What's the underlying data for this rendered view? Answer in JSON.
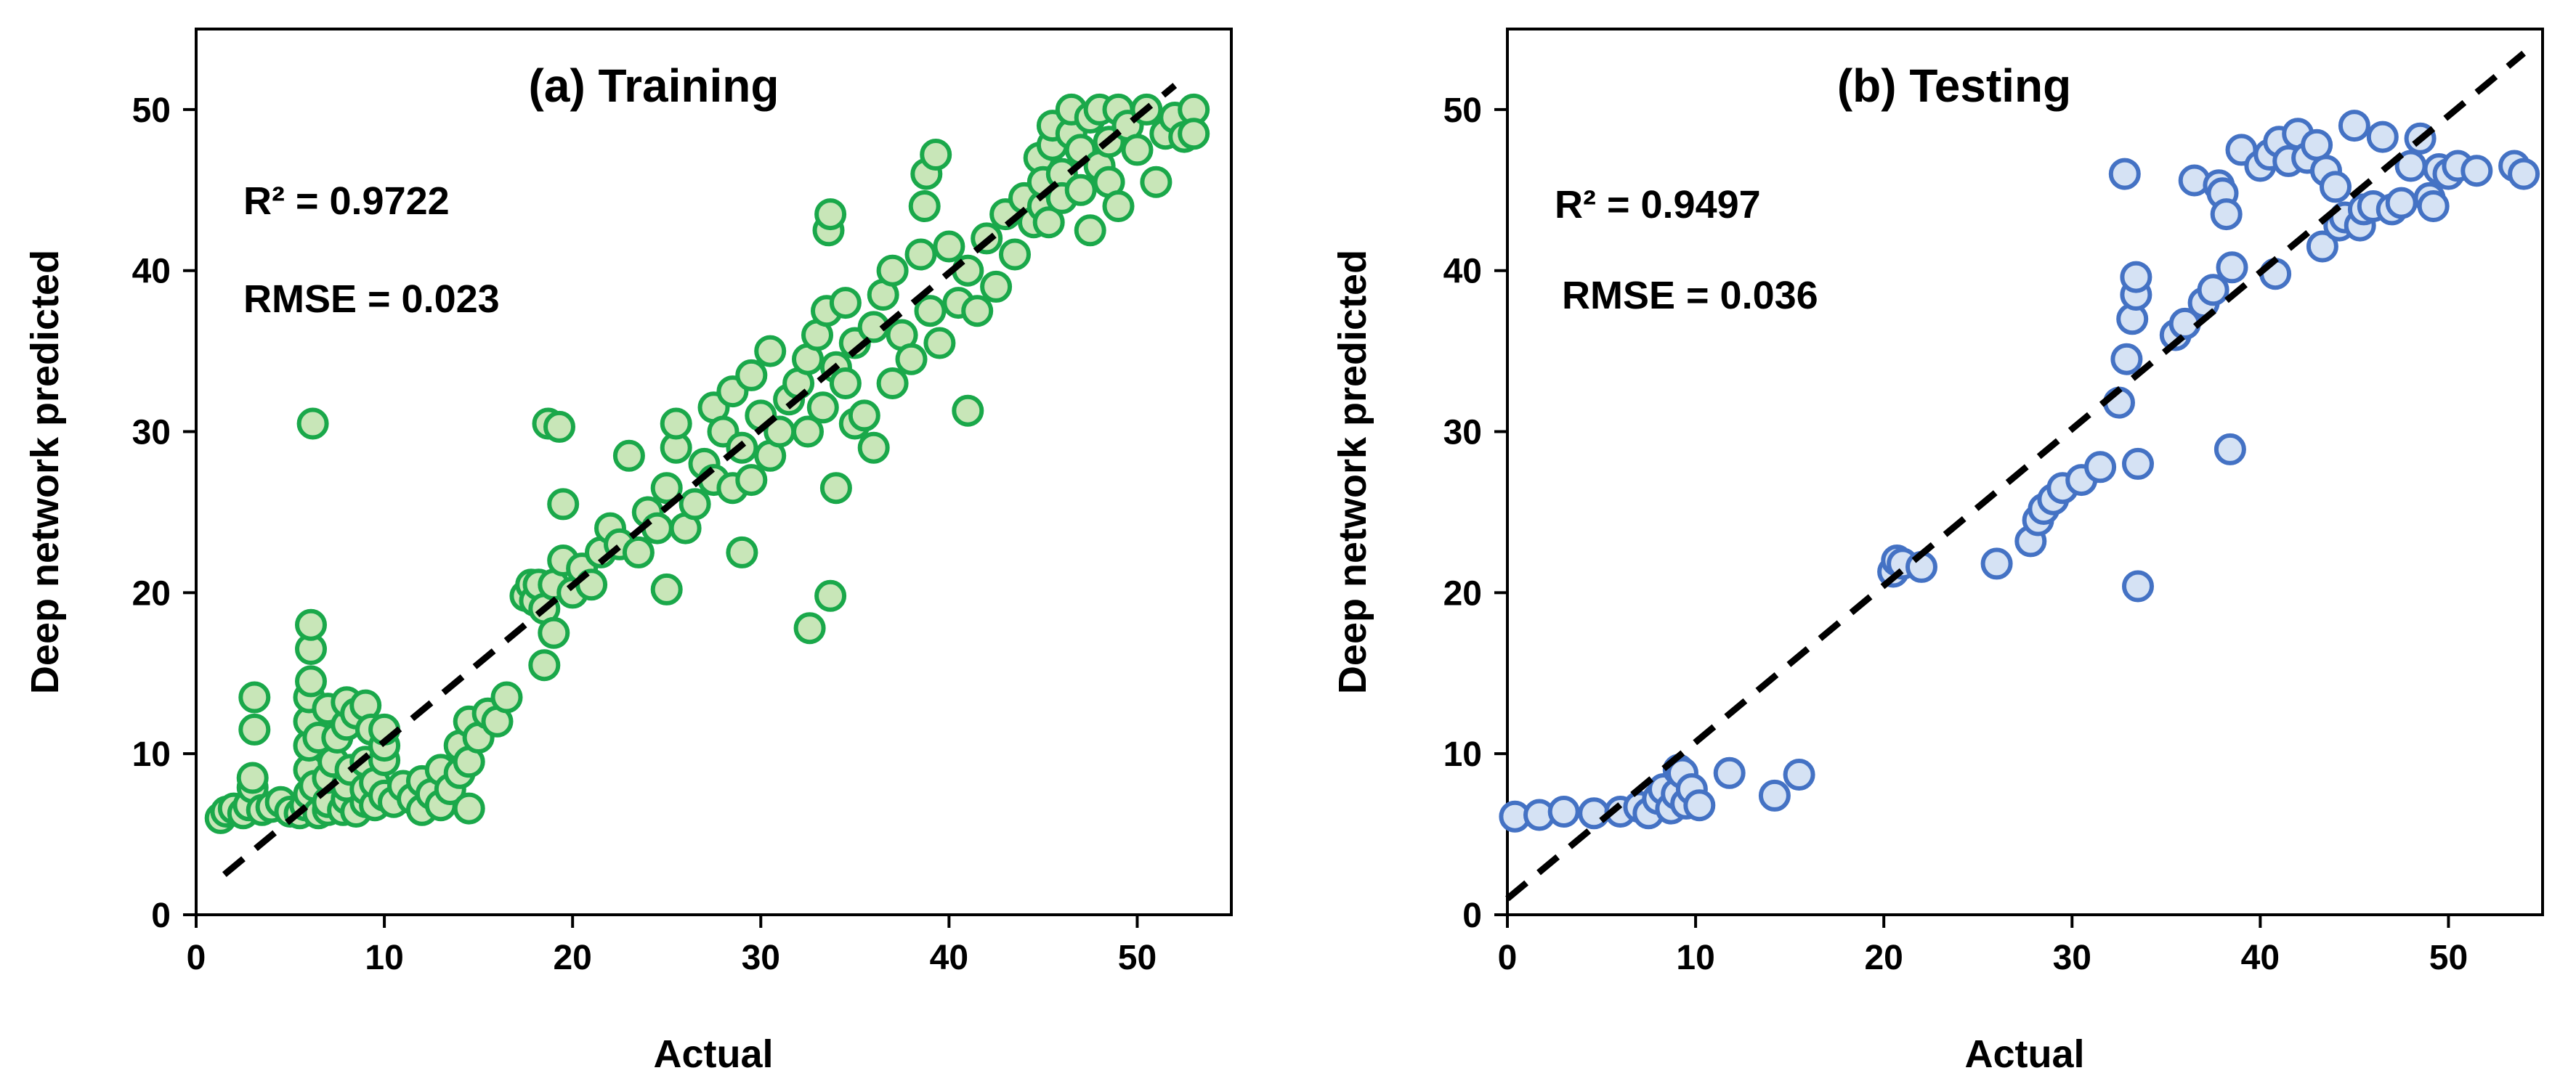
{
  "chart_data": [
    {
      "type": "scatter",
      "title": "(a) Training",
      "xlabel": "Actual",
      "ylabel": "Deep network predicted",
      "xlim": [
        0,
        55
      ],
      "ylim": [
        0,
        55
      ],
      "xticks": [
        0,
        10,
        20,
        30,
        40,
        50
      ],
      "yticks": [
        0,
        10,
        20,
        30,
        40,
        50
      ],
      "annotations": [
        "R² = 0.9722",
        "RMSE = 0.023"
      ],
      "marker_fill": "#c8e6b8",
      "marker_edge": "#1aa84a",
      "fit_line": {
        "x": [
          1.5,
          52
        ],
        "y": [
          2.5,
          51.5
        ],
        "style": "dashed",
        "color": "#000000"
      },
      "series": [
        {
          "name": "Training",
          "points": [
            [
              1.3,
              6.0
            ],
            [
              1.6,
              6.4
            ],
            [
              2.0,
              6.6
            ],
            [
              2.5,
              6.3
            ],
            [
              2.8,
              6.8
            ],
            [
              3.0,
              7.9
            ],
            [
              3.0,
              8.5
            ],
            [
              3.1,
              11.5
            ],
            [
              3.1,
              13.5
            ],
            [
              3.5,
              6.5
            ],
            [
              4.0,
              6.7
            ],
            [
              4.5,
              7.0
            ],
            [
              5.0,
              6.4
            ],
            [
              5.5,
              6.3
            ],
            [
              5.8,
              6.8
            ],
            [
              6.0,
              7.5
            ],
            [
              6.0,
              9.0
            ],
            [
              6.0,
              10.5
            ],
            [
              6.0,
              12.0
            ],
            [
              6.0,
              13.5
            ],
            [
              6.1,
              14.5
            ],
            [
              6.1,
              16.5
            ],
            [
              6.1,
              18.0
            ],
            [
              6.2,
              30.5
            ],
            [
              6.3,
              8.0
            ],
            [
              6.5,
              11.0
            ],
            [
              6.5,
              6.3
            ],
            [
              7.0,
              6.5
            ],
            [
              7.0,
              7.0
            ],
            [
              7.0,
              8.5
            ],
            [
              7.0,
              12.8
            ],
            [
              7.3,
              9.5
            ],
            [
              7.5,
              11.0
            ],
            [
              7.8,
              6.5
            ],
            [
              8.0,
              7.2
            ],
            [
              8.0,
              8.0
            ],
            [
              8.0,
              11.8
            ],
            [
              8.0,
              13.2
            ],
            [
              8.2,
              9.0
            ],
            [
              8.5,
              6.4
            ],
            [
              8.5,
              12.5
            ],
            [
              9.0,
              7.0
            ],
            [
              9.0,
              7.8
            ],
            [
              9.0,
              9.5
            ],
            [
              9.0,
              13.0
            ],
            [
              9.3,
              11.5
            ],
            [
              9.5,
              6.8
            ],
            [
              9.5,
              8.2
            ],
            [
              10.0,
              7.4
            ],
            [
              10.0,
              9.6
            ],
            [
              10.0,
              10.5
            ],
            [
              10.0,
              11.5
            ],
            [
              10.5,
              7.0
            ],
            [
              11.0,
              8.0
            ],
            [
              11.5,
              7.2
            ],
            [
              12.0,
              6.5
            ],
            [
              12.0,
              8.3
            ],
            [
              12.5,
              7.5
            ],
            [
              13.0,
              6.8
            ],
            [
              13.0,
              9.0
            ],
            [
              13.5,
              7.8
            ],
            [
              14.0,
              8.8
            ],
            [
              14.0,
              10.5
            ],
            [
              14.5,
              6.6
            ],
            [
              14.5,
              9.5
            ],
            [
              14.5,
              12.0
            ],
            [
              15.0,
              11.0
            ],
            [
              15.5,
              12.5
            ],
            [
              16.0,
              12.0
            ],
            [
              16.5,
              13.5
            ],
            [
              17.5,
              19.8
            ],
            [
              17.8,
              20.5
            ],
            [
              18.0,
              19.5
            ],
            [
              18.2,
              20.5
            ],
            [
              18.5,
              15.5
            ],
            [
              18.5,
              19.0
            ],
            [
              18.7,
              30.5
            ],
            [
              19.0,
              17.5
            ],
            [
              19.0,
              20.5
            ],
            [
              19.3,
              30.3
            ],
            [
              19.5,
              25.5
            ],
            [
              19.5,
              22.0
            ],
            [
              20.0,
              20.0
            ],
            [
              20.5,
              21.5
            ],
            [
              21.0,
              20.5
            ],
            [
              21.5,
              22.5
            ],
            [
              22.0,
              24.0
            ],
            [
              22.5,
              23.0
            ],
            [
              23.0,
              28.5
            ],
            [
              23.5,
              22.5
            ],
            [
              24.0,
              25.0
            ],
            [
              24.5,
              24.0
            ],
            [
              25.0,
              20.2
            ],
            [
              25.0,
              26.5
            ],
            [
              25.5,
              29.0
            ],
            [
              25.5,
              30.5
            ],
            [
              26.0,
              24.0
            ],
            [
              26.5,
              25.5
            ],
            [
              27.0,
              28.0
            ],
            [
              27.5,
              27.0
            ],
            [
              27.5,
              31.5
            ],
            [
              28.0,
              30.0
            ],
            [
              28.5,
              32.5
            ],
            [
              28.5,
              26.5
            ],
            [
              29.0,
              22.5
            ],
            [
              29.0,
              29.0
            ],
            [
              29.5,
              27.0
            ],
            [
              29.5,
              33.5
            ],
            [
              30.0,
              31.0
            ],
            [
              30.5,
              28.5
            ],
            [
              30.5,
              35.0
            ],
            [
              31.0,
              30.0
            ],
            [
              31.5,
              32.0
            ],
            [
              32.0,
              33.0
            ],
            [
              32.5,
              34.5
            ],
            [
              32.5,
              30.0
            ],
            [
              32.6,
              17.8
            ],
            [
              33.0,
              36.0
            ],
            [
              33.3,
              31.5
            ],
            [
              33.5,
              37.5
            ],
            [
              33.6,
              42.5
            ],
            [
              33.7,
              43.5
            ],
            [
              33.7,
              19.8
            ],
            [
              34.0,
              26.5
            ],
            [
              34.0,
              34.0
            ],
            [
              34.5,
              33.0
            ],
            [
              34.5,
              38.0
            ],
            [
              35.0,
              30.5
            ],
            [
              35.0,
              35.5
            ],
            [
              35.5,
              31.0
            ],
            [
              36.0,
              36.5
            ],
            [
              36.0,
              29.0
            ],
            [
              36.5,
              38.5
            ],
            [
              37.0,
              33.0
            ],
            [
              37.0,
              40.0
            ],
            [
              37.5,
              36.0
            ],
            [
              38.0,
              34.5
            ],
            [
              38.5,
              41.0
            ],
            [
              38.7,
              44.0
            ],
            [
              38.8,
              46.0
            ],
            [
              39.0,
              37.5
            ],
            [
              39.3,
              47.2
            ],
            [
              39.5,
              35.5
            ],
            [
              40.0,
              41.5
            ],
            [
              40.5,
              38.0
            ],
            [
              41.0,
              31.3
            ],
            [
              41.0,
              40.0
            ],
            [
              41.5,
              37.5
            ],
            [
              42.0,
              42.0
            ],
            [
              42.5,
              39.0
            ],
            [
              43.0,
              43.5
            ],
            [
              43.5,
              41.0
            ],
            [
              44.0,
              44.5
            ],
            [
              44.5,
              43.0
            ],
            [
              44.8,
              47.0
            ],
            [
              45.0,
              44.0
            ],
            [
              45.0,
              45.5
            ],
            [
              45.3,
              43.0
            ],
            [
              45.5,
              47.8
            ],
            [
              45.5,
              49.0
            ],
            [
              46.0,
              46.0
            ],
            [
              46.0,
              44.5
            ],
            [
              46.5,
              48.5
            ],
            [
              46.5,
              50.0
            ],
            [
              47.0,
              45.0
            ],
            [
              47.0,
              47.5
            ],
            [
              47.5,
              42.5
            ],
            [
              47.5,
              49.5
            ],
            [
              48.0,
              46.5
            ],
            [
              48.0,
              50.0
            ],
            [
              48.5,
              48.0
            ],
            [
              48.5,
              45.5
            ],
            [
              49.0,
              50.0
            ],
            [
              49.0,
              44.0
            ],
            [
              49.5,
              49.0
            ],
            [
              50.0,
              47.5
            ],
            [
              50.5,
              50.0
            ],
            [
              51.0,
              45.5
            ],
            [
              51.5,
              48.5
            ],
            [
              52.0,
              49.5
            ],
            [
              52.5,
              48.3
            ],
            [
              53.0,
              50.0
            ],
            [
              53.0,
              48.5
            ]
          ]
        }
      ]
    },
    {
      "type": "scatter",
      "title": "(b) Testing",
      "xlabel": "Actual",
      "ylabel": "Deep network predicted",
      "xlim": [
        0,
        55
      ],
      "ylim": [
        0,
        55
      ],
      "xticks": [
        0,
        10,
        20,
        30,
        40,
        50
      ],
      "yticks": [
        0,
        10,
        20,
        30,
        40,
        50
      ],
      "annotations": [
        "R² = 0.9497",
        "RMSE = 0.036"
      ],
      "marker_fill": "#d5e2f4",
      "marker_edge": "#4472c4",
      "fit_line": {
        "x": [
          0,
          54
        ],
        "y": [
          1.0,
          53.5
        ],
        "style": "dashed",
        "color": "#000000"
      },
      "series": [
        {
          "name": "Testing",
          "points": [
            [
              0.4,
              6.1
            ],
            [
              1.7,
              6.2
            ],
            [
              3.0,
              6.4
            ],
            [
              4.6,
              6.3
            ],
            [
              6.0,
              6.4
            ],
            [
              7.0,
              6.7
            ],
            [
              7.5,
              6.3
            ],
            [
              8.0,
              7.2
            ],
            [
              8.3,
              7.8
            ],
            [
              8.7,
              6.6
            ],
            [
              9.0,
              7.5
            ],
            [
              9.1,
              9.0
            ],
            [
              9.3,
              8.8
            ],
            [
              9.5,
              6.9
            ],
            [
              9.8,
              7.8
            ],
            [
              10.2,
              6.8
            ],
            [
              11.8,
              8.8
            ],
            [
              14.2,
              7.4
            ],
            [
              15.5,
              8.7
            ],
            [
              20.5,
              21.3
            ],
            [
              20.7,
              22.0
            ],
            [
              21.0,
              21.8
            ],
            [
              22.0,
              21.6
            ],
            [
              26.0,
              21.8
            ],
            [
              27.8,
              23.2
            ],
            [
              28.2,
              24.5
            ],
            [
              28.5,
              25.2
            ],
            [
              29.0,
              25.8
            ],
            [
              29.5,
              26.5
            ],
            [
              30.5,
              27.0
            ],
            [
              31.5,
              27.8
            ],
            [
              32.5,
              31.8
            ],
            [
              32.8,
              46.0
            ],
            [
              32.9,
              34.5
            ],
            [
              33.2,
              37.0
            ],
            [
              33.4,
              38.5
            ],
            [
              33.4,
              39.6
            ],
            [
              33.5,
              28.0
            ],
            [
              33.5,
              20.4
            ],
            [
              35.5,
              36.0
            ],
            [
              36.0,
              36.7
            ],
            [
              36.5,
              45.6
            ],
            [
              37.0,
              38.0
            ],
            [
              37.5,
              38.8
            ],
            [
              37.8,
              45.3
            ],
            [
              38.0,
              44.8
            ],
            [
              38.2,
              43.5
            ],
            [
              38.4,
              28.9
            ],
            [
              38.5,
              40.2
            ],
            [
              39.0,
              47.5
            ],
            [
              40.0,
              46.5
            ],
            [
              40.5,
              47.2
            ],
            [
              40.8,
              39.8
            ],
            [
              41.0,
              48.0
            ],
            [
              41.5,
              46.8
            ],
            [
              42.0,
              48.5
            ],
            [
              42.5,
              47.0
            ],
            [
              43.0,
              47.8
            ],
            [
              43.3,
              41.5
            ],
            [
              43.5,
              46.2
            ],
            [
              44.0,
              45.2
            ],
            [
              44.2,
              42.8
            ],
            [
              44.5,
              43.3
            ],
            [
              45.0,
              49.0
            ],
            [
              45.3,
              42.8
            ],
            [
              45.5,
              43.8
            ],
            [
              46.0,
              44.0
            ],
            [
              46.5,
              48.3
            ],
            [
              47.0,
              43.8
            ],
            [
              47.5,
              44.2
            ],
            [
              48.0,
              46.5
            ],
            [
              48.5,
              48.2
            ],
            [
              49.0,
              44.5
            ],
            [
              49.2,
              44.0
            ],
            [
              49.5,
              46.3
            ],
            [
              50.0,
              46.0
            ],
            [
              50.5,
              46.5
            ],
            [
              51.5,
              46.2
            ],
            [
              53.5,
              46.5
            ],
            [
              54.0,
              46.0
            ]
          ]
        }
      ]
    }
  ]
}
